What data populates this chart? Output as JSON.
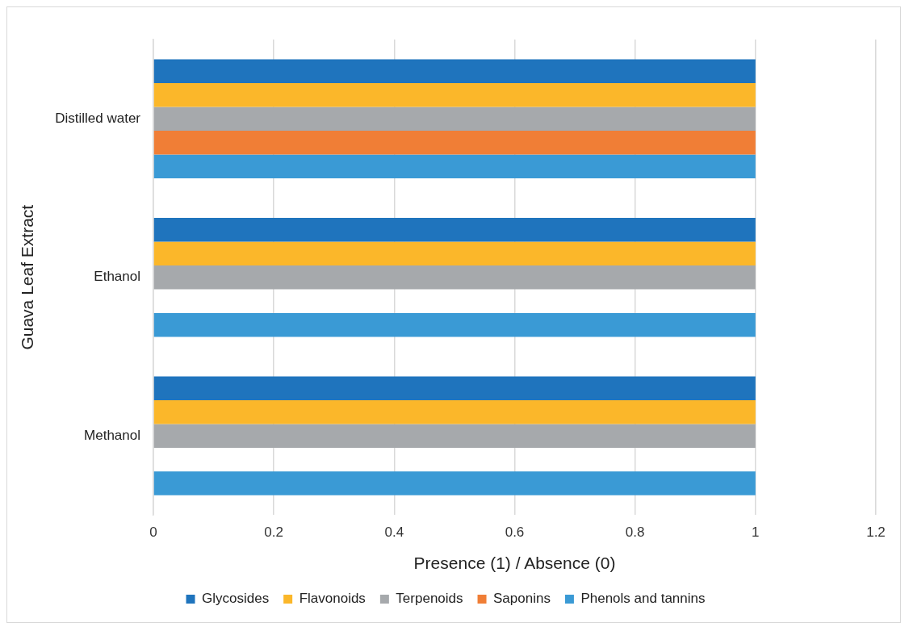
{
  "chart_data": {
    "type": "bar",
    "orientation": "horizontal",
    "xlabel": "Presence (1) / Absence (0)",
    "ylabel": "Guava Leaf Extract",
    "categories": [
      "Distilled water",
      "Ethanol",
      "Methanol"
    ],
    "series": [
      {
        "name": "Glycosides",
        "color": "#1f74bd",
        "values": [
          1,
          1,
          1
        ]
      },
      {
        "name": "Flavonoids",
        "color": "#fbb72a",
        "values": [
          1,
          1,
          1
        ]
      },
      {
        "name": "Terpenoids",
        "color": "#a6a9ac",
        "values": [
          1,
          1,
          1
        ]
      },
      {
        "name": "Saponins",
        "color": "#f07e36",
        "values": [
          1,
          0,
          0
        ]
      },
      {
        "name": "Phenols and tannins",
        "color": "#3a9ad5",
        "values": [
          1,
          1,
          1
        ]
      }
    ],
    "xlim": [
      0,
      1.2
    ],
    "xticks": [
      0,
      0.2,
      0.4,
      0.6,
      0.8,
      1,
      1.2
    ],
    "grid": "x",
    "legend": "bottom"
  }
}
